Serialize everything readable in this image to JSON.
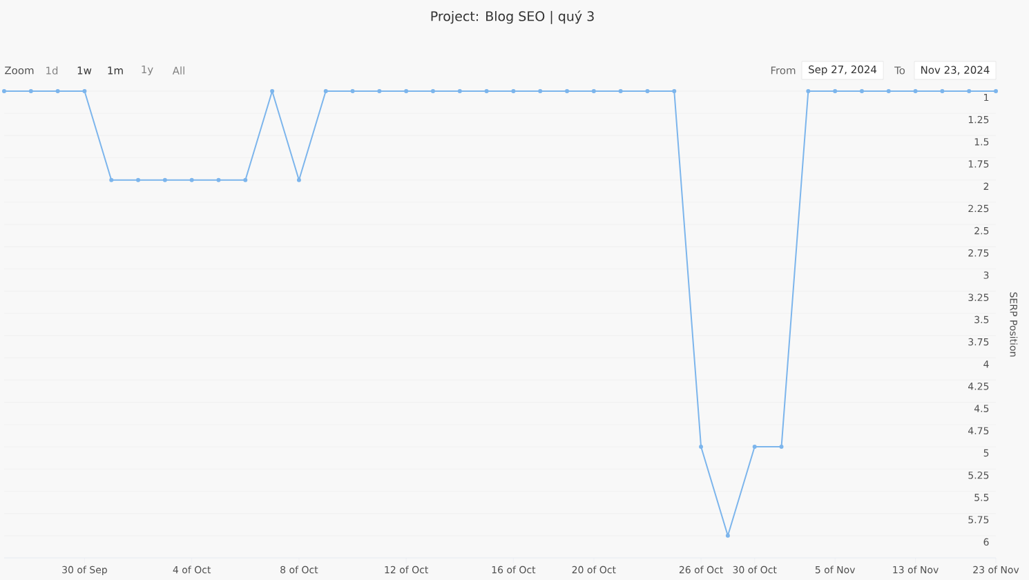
{
  "chart_data": {
    "type": "line",
    "title": "Project: Blog SEO | quý 3",
    "ylabel": "SERP Position",
    "annotations": [
      "Zoom",
      "1d",
      "1w",
      "1m",
      "1y",
      "All",
      "From",
      "Sep 27, 2024",
      "To",
      "Nov 23, 2024"
    ],
    "categories": [
      null,
      null,
      null,
      "30 of Sep",
      null,
      null,
      null,
      "4 of Oct",
      null,
      null,
      null,
      "8 of Oct",
      null,
      null,
      null,
      "12 of Oct",
      null,
      null,
      null,
      "16 of Oct",
      null,
      null,
      "20 of Oct",
      null,
      null,
      null,
      "26 of Oct",
      null,
      "30 of Oct",
      null,
      null,
      "5 of Nov",
      null,
      null,
      "13 of Nov",
      null,
      null,
      "23 of Nov"
    ],
    "series": [
      {
        "color": "#7cb5ec",
        "values": [
          1,
          1,
          1,
          1,
          2,
          2,
          2,
          2,
          2,
          2,
          1,
          2,
          1,
          1,
          1,
          1,
          1,
          1,
          1,
          1,
          1,
          1,
          1,
          1,
          1,
          1,
          5,
          6,
          5,
          5,
          1,
          1,
          1,
          1,
          1,
          1,
          1,
          1
        ]
      }
    ],
    "ylim": [
      6.25,
      1
    ],
    "yticks": [
      1,
      1.25,
      1.5,
      1.75,
      2,
      2.25,
      2.5,
      2.75,
      3,
      3.25,
      3.5,
      3.75,
      4,
      4.25,
      4.5,
      4.75,
      5,
      5.25,
      5.5,
      5.75,
      6
    ],
    "grid": "y",
    "marker": "circle",
    "line_style": "solid"
  }
}
